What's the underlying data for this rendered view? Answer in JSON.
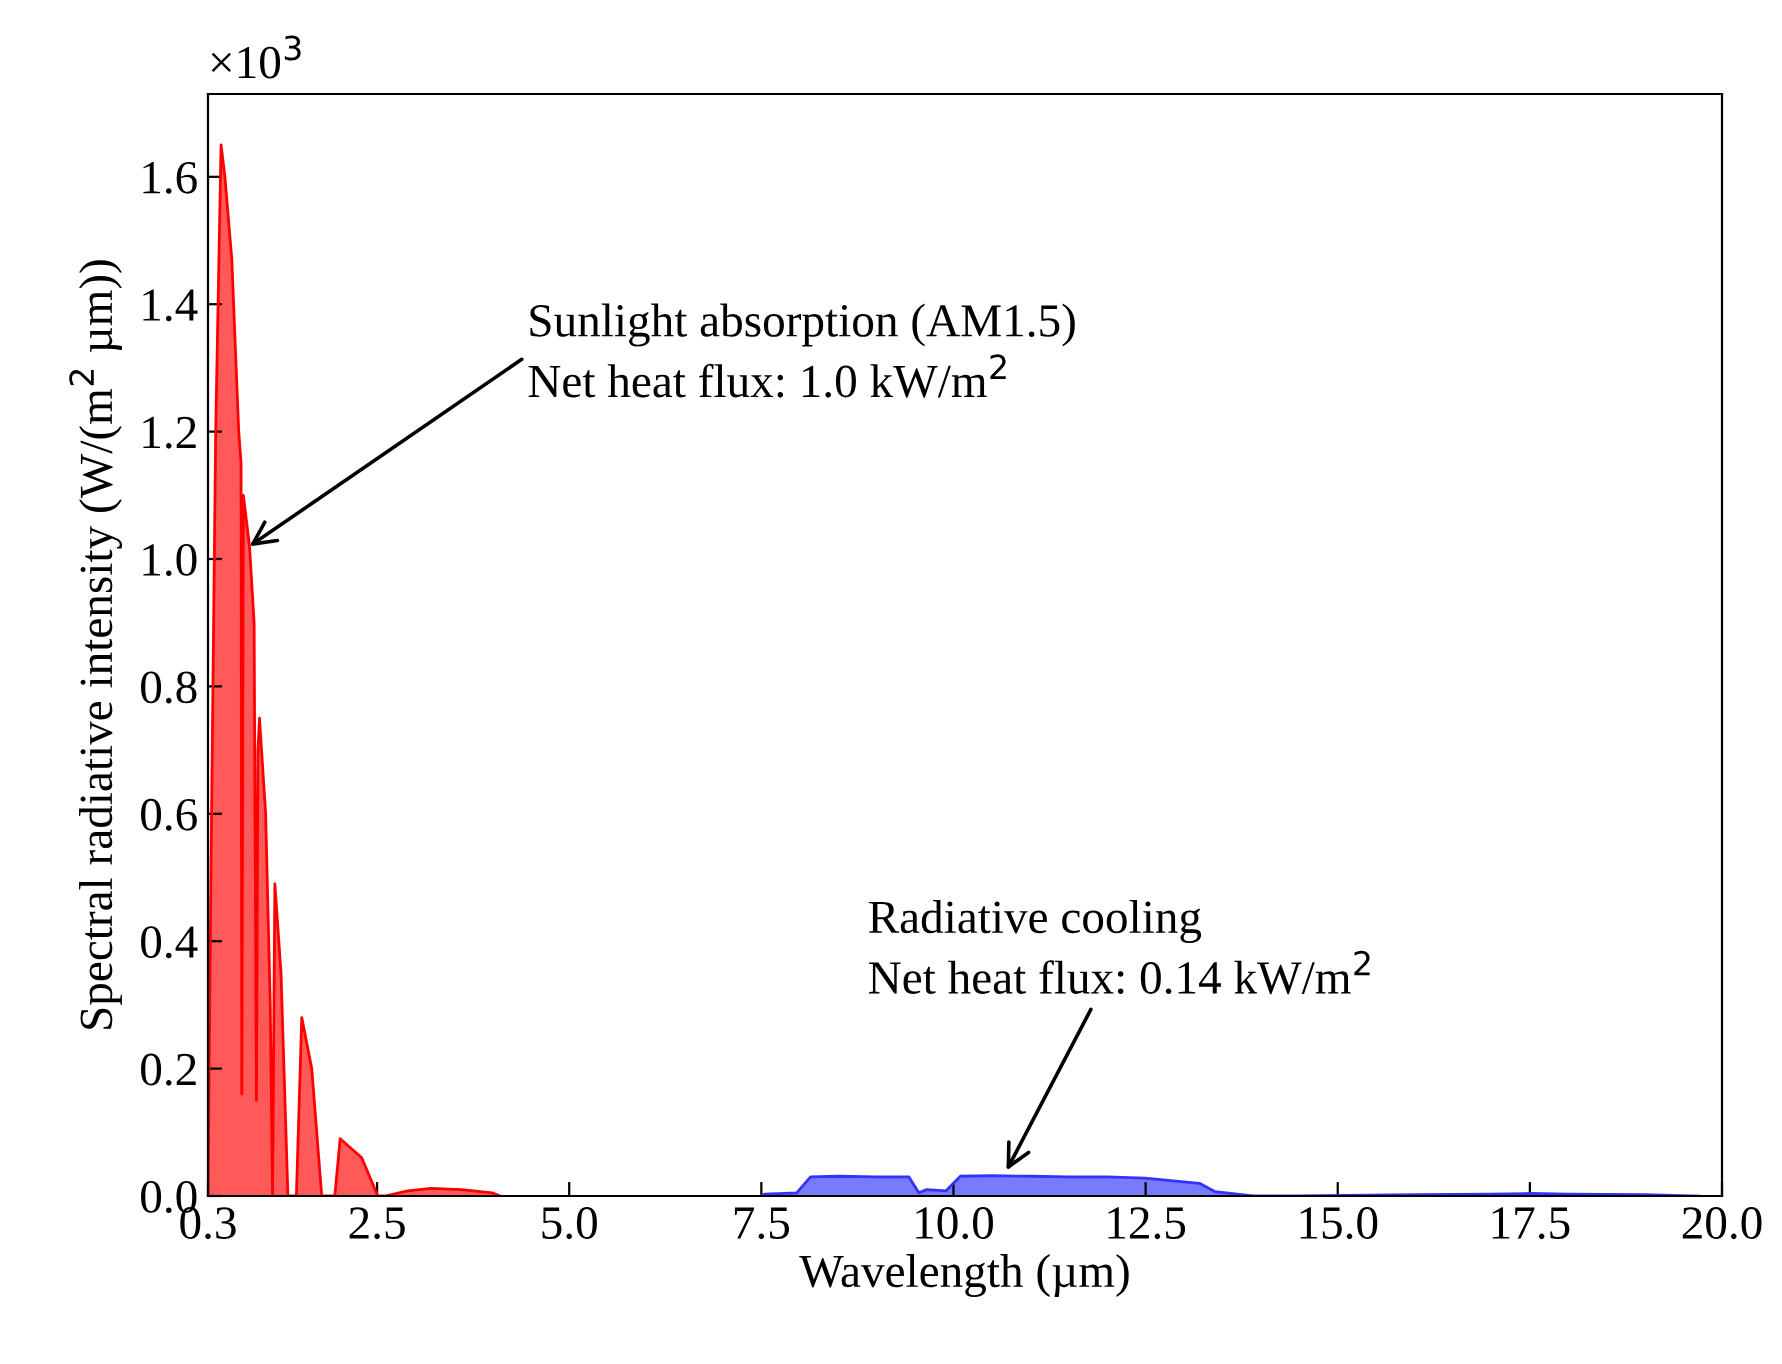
{
  "chart_data": {
    "type": "area",
    "xlabel": "Wavelength (µm)",
    "ylabel": "Spectral radiative intensity (W/(m$^{2}$ µm))",
    "xlim": [
      0.3,
      20.0
    ],
    "xticks": [
      0.3,
      2.5,
      {
        "value": 5,
        "label": "5.0"
      },
      7.5,
      {
        "value": 10,
        "label": "10.0"
      },
      12.5,
      {
        "value": 15,
        "label": "15.0"
      },
      17.5,
      {
        "value": 20,
        "label": "20.0"
      }
    ],
    "ylim": [
      0,
      1.73
    ],
    "yticks": [
      {
        "value": 0,
        "label": "0.0"
      },
      0.2,
      0.4,
      0.6,
      0.8,
      {
        "value": 1,
        "label": "1.0"
      },
      1.2,
      1.4,
      1.6
    ],
    "grid": false,
    "legend": false,
    "series": [
      {
        "color": "#ff0000",
        "x": [
          0.3,
          0.34,
          0.4,
          0.47,
          0.52,
          0.61,
          0.7,
          0.73,
          0.74,
          0.76,
          0.84,
          0.9,
          0.93,
          0.95,
          0.97,
          1.05,
          1.11,
          1.14,
          1.17,
          1.25,
          1.34,
          1.4,
          1.45,
          1.52,
          1.65,
          1.78,
          1.9,
          1.95,
          2.02,
          2.3,
          2.51,
          2.6,
          2.9,
          3.2,
          3.6,
          4.0,
          4.1
        ],
        "values": [
          0.0,
          0.53,
          1.2,
          1.65,
          1.6,
          1.47,
          1.2,
          1.15,
          0.16,
          1.1,
          1.02,
          0.9,
          0.15,
          0.7,
          0.75,
          0.6,
          0.3,
          0.0,
          0.49,
          0.35,
          0.0,
          0.0,
          0.0,
          0.28,
          0.2,
          0.0,
          0.0,
          0.0,
          0.09,
          0.06,
          0.0,
          0.0,
          0.008,
          0.012,
          0.01,
          0.005,
          0.0
        ]
      },
      {
        "color": "#3333ff",
        "x": [
          7.5,
          7.54,
          7.96,
          8.14,
          8.5,
          9.0,
          9.42,
          9.55,
          9.65,
          9.9,
          10.09,
          10.5,
          11.0,
          11.5,
          12.0,
          12.49,
          13.2,
          13.4,
          13.9,
          14.5,
          16.0,
          17.0,
          17.5,
          18.0,
          19.0,
          19.7
        ],
        "values": [
          0.0,
          0.003,
          0.005,
          0.03,
          0.031,
          0.03,
          0.03,
          0.005,
          0.01,
          0.008,
          0.031,
          0.032,
          0.031,
          0.03,
          0.03,
          0.028,
          0.02,
          0.007,
          0.0,
          0.0,
          0.002,
          0.003,
          0.004,
          0.003,
          0.002,
          0.0
        ]
      }
    ],
    "annotations": [
      "×10$^{3}$",
      {
        "text": "Sunlight absorption (AM1.5)\nNet heat flux: 1.0 kW/m$^{2}$",
        "x": 0.84,
        "y": 1.02
      },
      {
        "text": "Radiative cooling\nNet heat flux: 0.14 kW/m$^{2}$",
        "x": 10.69,
        "y": 0.04
      }
    ]
  }
}
